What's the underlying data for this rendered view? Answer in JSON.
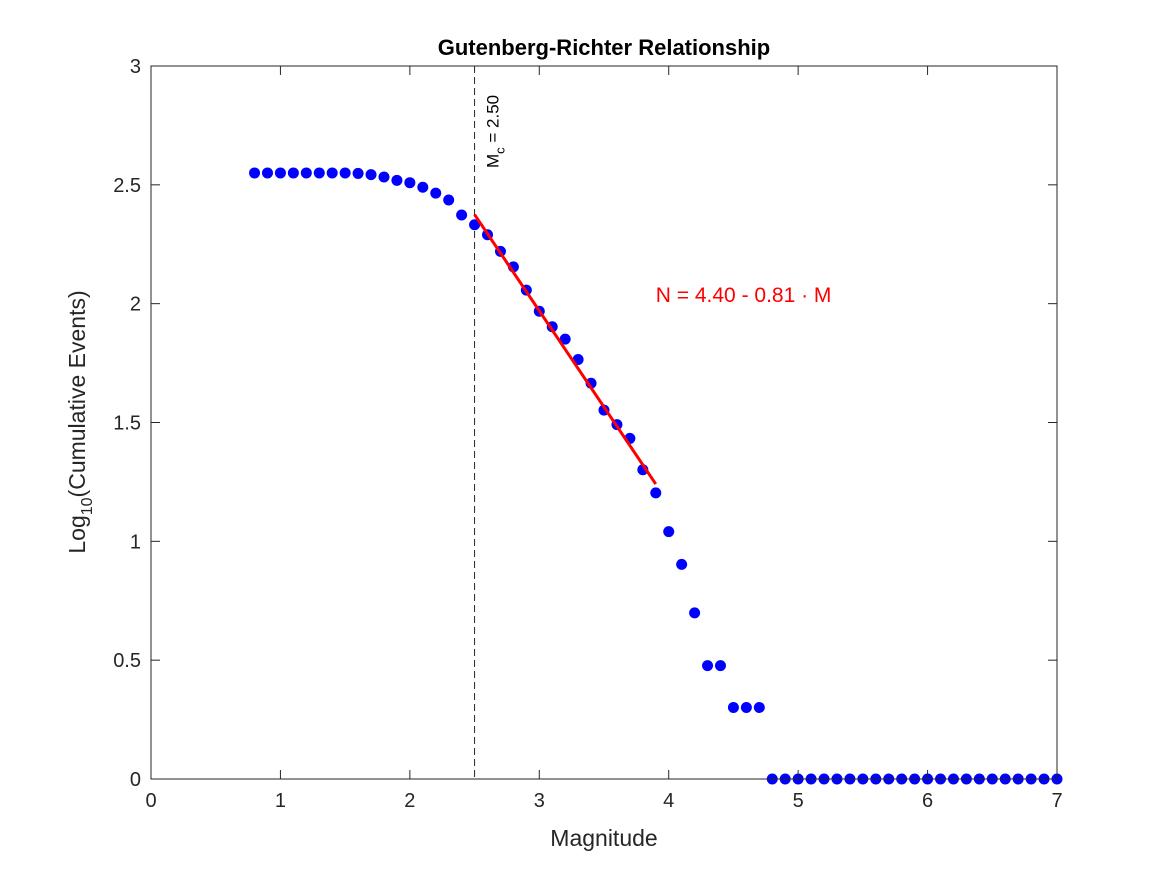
{
  "chart_data": {
    "type": "scatter",
    "title": "Gutenberg-Richter Relationship",
    "xlabel": "Magnitude",
    "ylabel_main": "Log",
    "ylabel_sub": "10",
    "ylabel_rest": "(Cumulative Events)",
    "xlim": [
      0,
      7
    ],
    "ylim": [
      0,
      3
    ],
    "xticks": [
      "0",
      "1",
      "2",
      "3",
      "4",
      "5",
      "6",
      "7"
    ],
    "yticks": [
      "0",
      "0.5",
      "1",
      "1.5",
      "2",
      "2.5",
      "3"
    ],
    "grid": false,
    "marker_color": "#0000ff",
    "fit_color": "#ff0000",
    "points": {
      "x": [
        0.8,
        0.9,
        1.0,
        1.1,
        1.2,
        1.3,
        1.4,
        1.5,
        1.6,
        1.7,
        1.8,
        1.9,
        2.0,
        2.1,
        2.2,
        2.3,
        2.4,
        2.5,
        2.6,
        2.7,
        2.8,
        2.9,
        3.0,
        3.1,
        3.2,
        3.3,
        3.4,
        3.5,
        3.6,
        3.7,
        3.8,
        3.9,
        4.0,
        4.1,
        4.2,
        4.3,
        4.4,
        4.5,
        4.6,
        4.7,
        4.8,
        4.9,
        5.0,
        5.1,
        5.2,
        5.3,
        5.4,
        5.5,
        5.6,
        5.7,
        5.8,
        5.9,
        6.0,
        6.1,
        6.2,
        6.3,
        6.4,
        6.5,
        6.6,
        6.7,
        6.8,
        6.9,
        7.0
      ],
      "y": [
        2.55,
        2.55,
        2.55,
        2.55,
        2.55,
        2.55,
        2.55,
        2.55,
        2.548,
        2.543,
        2.533,
        2.519,
        2.509,
        2.49,
        2.465,
        2.436,
        2.373,
        2.332,
        2.29,
        2.22,
        2.155,
        2.057,
        1.968,
        1.903,
        1.851,
        1.765,
        1.665,
        1.552,
        1.491,
        1.433,
        1.301,
        1.204,
        1.041,
        0.903,
        0.699,
        0.477,
        0.477,
        0.301,
        0.301,
        0.301,
        0,
        0,
        0,
        0,
        0,
        0,
        0,
        0,
        0,
        0,
        0,
        0,
        0,
        0,
        0,
        0,
        0,
        0,
        0,
        0,
        0,
        0,
        0
      ]
    },
    "fit_line": {
      "x": [
        2.5,
        3.9
      ],
      "y": [
        2.375,
        1.241
      ]
    },
    "mc_line": {
      "x": 2.5
    },
    "mc_label_main": "M",
    "mc_label_sub": "c",
    "mc_label_rest": " = 2.50",
    "equation": "N = 4.40 - 0.81 · M",
    "equation_anchor": {
      "x": 3.9,
      "y": 2.04
    }
  }
}
